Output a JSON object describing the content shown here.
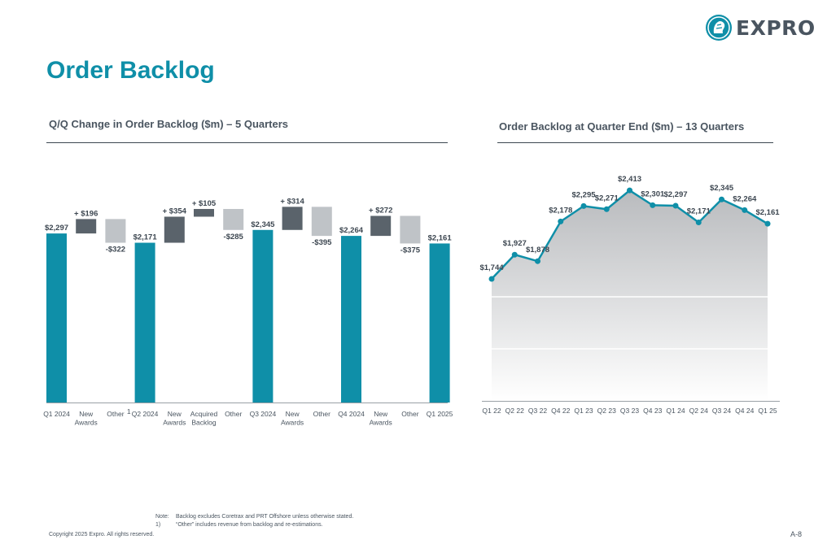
{
  "brand": {
    "name": "EXPRO",
    "logo_icon": "lion-head-icon",
    "accent": "#0f8fa8",
    "dark": "#5a636b",
    "grey": "#bfc3c7"
  },
  "title": "Order Backlog",
  "waterfall": {
    "title": "Q/Q Change in Order Backlog ($m) – 5 Quarters"
  },
  "line": {
    "title": "Order Backlog at Quarter End ($m) – 13 Quarters"
  },
  "chart_data": [
    {
      "type": "bar",
      "subtype": "waterfall",
      "categories": [
        "Q1 2024",
        "New Awards",
        "Other",
        "Q2 2024",
        "New Awards",
        "Acquired Backlog",
        "Other",
        "Q3 2024",
        "New Awards",
        "Other",
        "Q4 2024",
        "New Awards",
        "Other",
        "Q1 2025"
      ],
      "category_lines": [
        [
          "Q1 2024"
        ],
        [
          "New",
          "Awards"
        ],
        [
          "Other"
        ],
        [
          "Q2 2024"
        ],
        [
          "New",
          "Awards"
        ],
        [
          "Acquired",
          "Backlog"
        ],
        [
          "Other"
        ],
        [
          "Q3 2024"
        ],
        [
          "New",
          "Awards"
        ],
        [
          "Other"
        ],
        [
          "Q4 2024"
        ],
        [
          "New",
          "Awards"
        ],
        [
          "Other"
        ],
        [
          "Q1 2025"
        ]
      ],
      "footnote_marker": {
        "category_index": 2,
        "text": "1"
      },
      "values": [
        2297,
        196,
        -322,
        2171,
        354,
        105,
        -285,
        2345,
        314,
        -395,
        2264,
        272,
        -375,
        2161
      ],
      "kinds": [
        "total",
        "increase",
        "decrease",
        "total",
        "increase",
        "increase",
        "decrease",
        "total",
        "increase",
        "decrease",
        "total",
        "increase",
        "decrease",
        "total"
      ],
      "labels": [
        "$2,297",
        "+ $196",
        "-$322",
        "$2,171",
        "+ $354",
        "+ $105",
        "-$285",
        "$2,345",
        "+ $314",
        "-$395",
        "$2,264",
        "+ $272",
        "-$375",
        "$2,161"
      ],
      "colors": {
        "total": "#0f8fa8",
        "increase": "#5a636b",
        "decrease": "#bfc3c7"
      },
      "grid": false,
      "legend": "none"
    },
    {
      "type": "area",
      "categories": [
        "Q1 22",
        "Q2 22",
        "Q3 22",
        "Q4 22",
        "Q1 23",
        "Q2 23",
        "Q3 23",
        "Q4 23",
        "Q1 24",
        "Q2 24",
        "Q3 24",
        "Q4 24",
        "Q1 25"
      ],
      "values": [
        1744,
        1927,
        1878,
        2178,
        2295,
        2271,
        2413,
        2301,
        2297,
        2171,
        2345,
        2264,
        2161
      ],
      "labels": [
        "$1,744",
        "$1,927",
        "$1,878",
        "$2,178",
        "$2,295",
        "$2,271",
        "$2,413",
        "$2,301",
        "$2,297",
        "$2,171",
        "$2,345",
        "$2,264",
        "$2,161"
      ],
      "line_color": "#0f8fa8",
      "grid": true,
      "legend": "none"
    }
  ],
  "notes": [
    {
      "key": "Note:",
      "text": "Backlog excludes Coretrax and PRT Offshore unless otherwise stated."
    },
    {
      "key": "1)",
      "text": "“Other” includes revenue from backlog and re-estimations."
    }
  ],
  "copyright": "Copyright 2025 Expro. All rights reserved.",
  "page_number": "A-8"
}
